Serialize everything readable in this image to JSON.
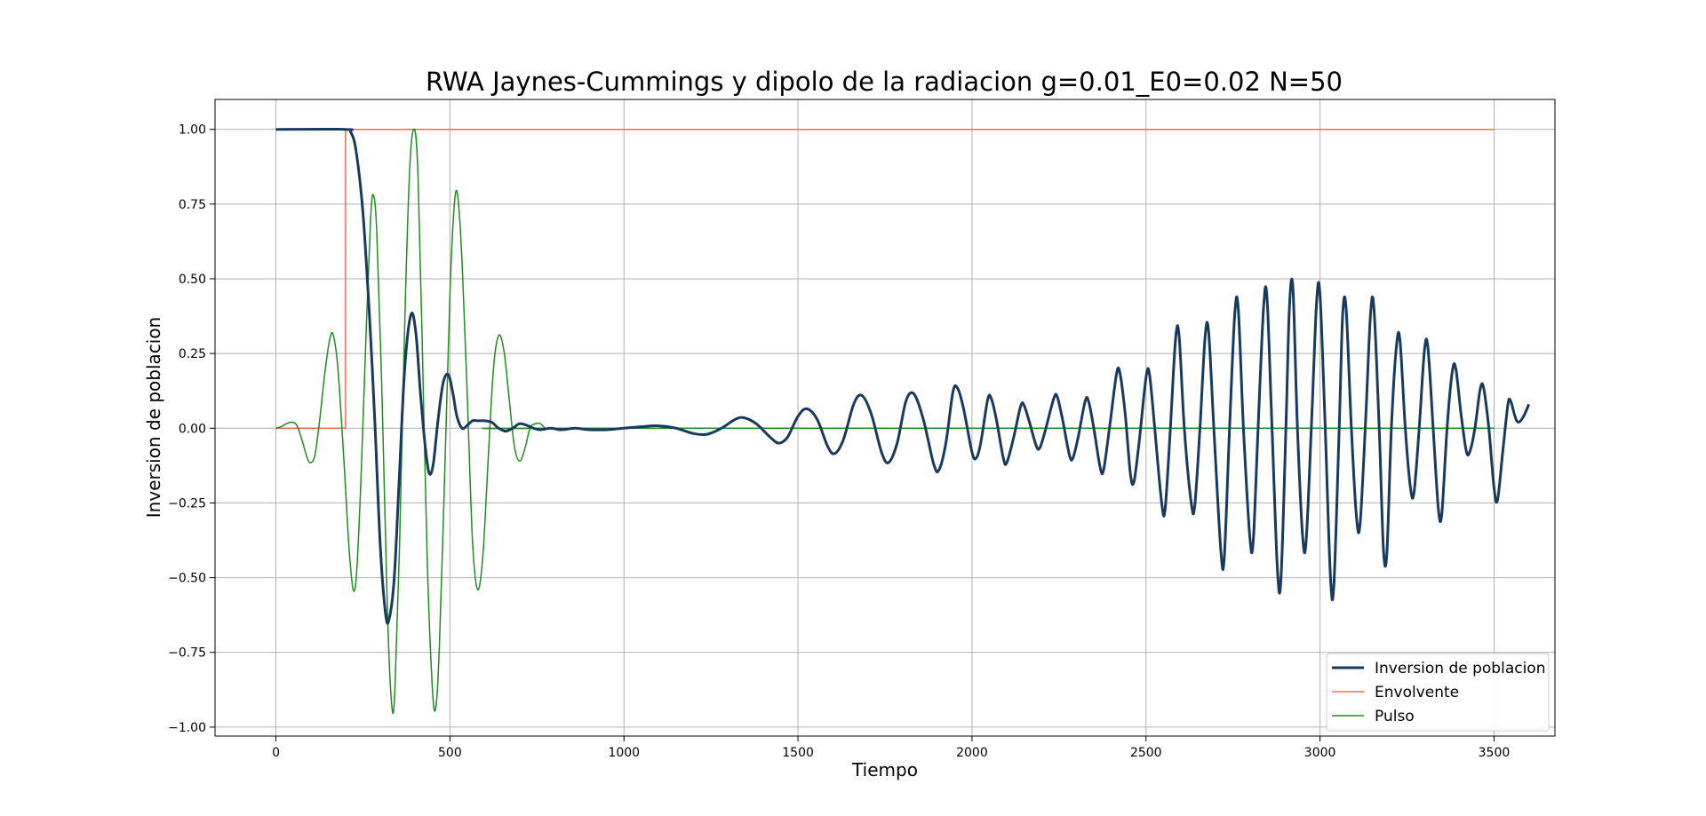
{
  "chart_data": {
    "type": "line",
    "title": "RWA Jaynes-Cummings y dipolo de la radiacion g=0.01_E0=0.02 N=50",
    "xlabel": "Tiempo",
    "ylabel": "Inversion de poblacion",
    "xlim": [
      -175,
      3675
    ],
    "ylim": [
      -1.03,
      1.1
    ],
    "xticks": [
      0,
      500,
      1000,
      1500,
      2000,
      2500,
      3000,
      3500
    ],
    "xtick_labels": [
      "0",
      "500",
      "1000",
      "1500",
      "2000",
      "2500",
      "3000",
      "3500"
    ],
    "yticks": [
      1.0,
      0.75,
      0.5,
      0.25,
      0.0,
      -0.25,
      -0.5,
      -0.75,
      -1.0
    ],
    "ytick_labels": [
      "1.00",
      "0.75",
      "0.50",
      "0.25",
      "0.00",
      "−0.25",
      "−0.50",
      "−0.75",
      "−1.00"
    ],
    "grid": true,
    "legend_position": "lower right",
    "series": [
      {
        "name": "Inversion de poblacion",
        "color": "#173a5e",
        "points": [
          [
            0,
            1
          ],
          [
            200,
            1
          ],
          [
            215,
            0.99
          ],
          [
            230,
            0.93
          ],
          [
            250,
            0.72
          ],
          [
            270,
            0.35
          ],
          [
            285,
            0.0
          ],
          [
            300,
            -0.4
          ],
          [
            315,
            -0.62
          ],
          [
            325,
            -0.64
          ],
          [
            340,
            -0.5
          ],
          [
            355,
            -0.15
          ],
          [
            370,
            0.2
          ],
          [
            388,
            0.38
          ],
          [
            402,
            0.32
          ],
          [
            415,
            0.12
          ],
          [
            428,
            -0.05
          ],
          [
            440,
            -0.15
          ],
          [
            452,
            -0.12
          ],
          [
            465,
            0.02
          ],
          [
            480,
            0.15
          ],
          [
            495,
            0.18
          ],
          [
            508,
            0.12
          ],
          [
            520,
            0.04
          ],
          [
            535,
            0.0
          ],
          [
            550,
            0.01
          ],
          [
            565,
            0.025
          ],
          [
            580,
            0.025
          ],
          [
            600,
            0.025
          ],
          [
            620,
            0.02
          ],
          [
            640,
            0.0
          ],
          [
            660,
            -0.01
          ],
          [
            680,
            0.0
          ],
          [
            700,
            0.015
          ],
          [
            720,
            0.01
          ],
          [
            740,
            0.0
          ],
          [
            760,
            -0.005
          ],
          [
            790,
            0.0
          ],
          [
            820,
            -0.005
          ],
          [
            860,
            0.0
          ],
          [
            900,
            -0.005
          ],
          [
            950,
            -0.005
          ],
          [
            1000,
            0.0
          ],
          [
            1050,
            0.005
          ],
          [
            1100,
            0.008
          ],
          [
            1150,
            0.0
          ],
          [
            1200,
            -0.018
          ],
          [
            1240,
            -0.02
          ],
          [
            1280,
            0.0
          ],
          [
            1320,
            0.03
          ],
          [
            1345,
            0.035
          ],
          [
            1380,
            0.015
          ],
          [
            1420,
            -0.03
          ],
          [
            1445,
            -0.05
          ],
          [
            1470,
            -0.03
          ],
          [
            1500,
            0.04
          ],
          [
            1525,
            0.065
          ],
          [
            1555,
            0.03
          ],
          [
            1585,
            -0.06
          ],
          [
            1605,
            -0.085
          ],
          [
            1630,
            -0.04
          ],
          [
            1660,
            0.08
          ],
          [
            1683,
            0.11
          ],
          [
            1710,
            0.05
          ],
          [
            1740,
            -0.08
          ],
          [
            1760,
            -0.115
          ],
          [
            1785,
            -0.05
          ],
          [
            1810,
            0.09
          ],
          [
            1833,
            0.115
          ],
          [
            1860,
            0.03
          ],
          [
            1890,
            -0.12
          ],
          [
            1905,
            -0.14
          ],
          [
            1925,
            -0.05
          ],
          [
            1945,
            0.12
          ],
          [
            1958,
            0.135
          ],
          [
            1975,
            0.07
          ],
          [
            2000,
            -0.08
          ],
          [
            2012,
            -0.1
          ],
          [
            2025,
            -0.05
          ],
          [
            2045,
            0.095
          ],
          [
            2055,
            0.1
          ],
          [
            2070,
            0.03
          ],
          [
            2090,
            -0.1
          ],
          [
            2100,
            -0.115
          ],
          [
            2120,
            -0.03
          ],
          [
            2140,
            0.075
          ],
          [
            2150,
            0.075
          ],
          [
            2165,
            0.02
          ],
          [
            2185,
            -0.06
          ],
          [
            2195,
            -0.065
          ],
          [
            2210,
            -0.01
          ],
          [
            2235,
            0.1
          ],
          [
            2245,
            0.105
          ],
          [
            2260,
            0.03
          ],
          [
            2280,
            -0.09
          ],
          [
            2290,
            -0.1
          ],
          [
            2305,
            -0.03
          ],
          [
            2325,
            0.09
          ],
          [
            2335,
            0.09
          ],
          [
            2350,
            0.0
          ],
          [
            2368,
            -0.13
          ],
          [
            2378,
            -0.14
          ],
          [
            2395,
            0.0
          ],
          [
            2415,
            0.18
          ],
          [
            2425,
            0.185
          ],
          [
            2440,
            0.05
          ],
          [
            2455,
            -0.15
          ],
          [
            2465,
            -0.18
          ],
          [
            2480,
            -0.05
          ],
          [
            2500,
            0.17
          ],
          [
            2510,
            0.18
          ],
          [
            2525,
            0.0
          ],
          [
            2545,
            -0.25
          ],
          [
            2555,
            -0.27
          ],
          [
            2570,
            0.0
          ],
          [
            2585,
            0.3
          ],
          [
            2595,
            0.31
          ],
          [
            2610,
            0.0
          ],
          [
            2630,
            -0.25
          ],
          [
            2640,
            -0.26
          ],
          [
            2655,
            0.0
          ],
          [
            2670,
            0.31
          ],
          [
            2680,
            0.32
          ],
          [
            2695,
            0.0
          ],
          [
            2715,
            -0.41
          ],
          [
            2725,
            -0.43
          ],
          [
            2740,
            0.0
          ],
          [
            2755,
            0.38
          ],
          [
            2765,
            0.4
          ],
          [
            2780,
            0.0
          ],
          [
            2798,
            -0.36
          ],
          [
            2808,
            -0.38
          ],
          [
            2822,
            0.0
          ],
          [
            2838,
            0.41
          ],
          [
            2848,
            0.43
          ],
          [
            2862,
            0.0
          ],
          [
            2878,
            -0.48
          ],
          [
            2888,
            -0.5
          ],
          [
            2902,
            0.0
          ],
          [
            2912,
            0.4
          ],
          [
            2922,
            0.47
          ],
          [
            2935,
            0.0
          ],
          [
            2950,
            -0.36
          ],
          [
            2960,
            -0.38
          ],
          [
            2975,
            0.0
          ],
          [
            2990,
            0.42
          ],
          [
            3000,
            0.445
          ],
          [
            3015,
            0.0
          ],
          [
            3030,
            -0.5
          ],
          [
            3040,
            -0.52
          ],
          [
            3055,
            0.0
          ],
          [
            3065,
            0.38
          ],
          [
            3075,
            0.4
          ],
          [
            3090,
            0.0
          ],
          [
            3105,
            -0.3
          ],
          [
            3115,
            -0.32
          ],
          [
            3130,
            0.0
          ],
          [
            3145,
            0.38
          ],
          [
            3155,
            0.4
          ],
          [
            3170,
            0.0
          ],
          [
            3182,
            -0.4
          ],
          [
            3192,
            -0.42
          ],
          [
            3205,
            0.0
          ],
          [
            3220,
            0.28
          ],
          [
            3230,
            0.29
          ],
          [
            3245,
            0.0
          ],
          [
            3260,
            -0.2
          ],
          [
            3270,
            -0.215
          ],
          [
            3285,
            0.0
          ],
          [
            3300,
            0.26
          ],
          [
            3310,
            0.27
          ],
          [
            3325,
            0.0
          ],
          [
            3340,
            -0.27
          ],
          [
            3350,
            -0.285
          ],
          [
            3365,
            0.0
          ],
          [
            3380,
            0.19
          ],
          [
            3390,
            0.2
          ],
          [
            3405,
            0.05
          ],
          [
            3420,
            -0.075
          ],
          [
            3430,
            -0.08
          ],
          [
            3445,
            0.0
          ],
          [
            3460,
            0.13
          ],
          [
            3470,
            0.135
          ],
          [
            3485,
            0.0
          ],
          [
            3500,
            -0.2
          ],
          [
            3510,
            -0.24
          ],
          [
            3525,
            -0.08
          ],
          [
            3540,
            0.08
          ],
          [
            3548,
            0.09
          ],
          [
            3560,
            0.04
          ],
          [
            3570,
            0.02
          ],
          [
            3585,
            0.04
          ],
          [
            3600,
            0.08
          ]
        ]
      },
      {
        "name": "Envolvente",
        "color": "#ef6b55",
        "points": [
          [
            0,
            0
          ],
          [
            200,
            0
          ],
          [
            200,
            1
          ],
          [
            3500,
            1
          ]
        ]
      },
      {
        "name": "Pulso",
        "color": "#228b22",
        "points": [
          [
            0,
            0
          ],
          [
            15,
            0.005
          ],
          [
            30,
            0.015
          ],
          [
            45,
            0.02
          ],
          [
            60,
            0.01
          ],
          [
            75,
            -0.04
          ],
          [
            90,
            -0.1
          ],
          [
            100,
            -0.115
          ],
          [
            112,
            -0.09
          ],
          [
            125,
            0.02
          ],
          [
            140,
            0.18
          ],
          [
            155,
            0.3
          ],
          [
            165,
            0.31
          ],
          [
            178,
            0.2
          ],
          [
            195,
            -0.1
          ],
          [
            210,
            -0.4
          ],
          [
            222,
            -0.54
          ],
          [
            232,
            -0.48
          ],
          [
            245,
            -0.15
          ],
          [
            260,
            0.35
          ],
          [
            272,
            0.7
          ],
          [
            280,
            0.78
          ],
          [
            290,
            0.65
          ],
          [
            305,
            0.1
          ],
          [
            320,
            -0.6
          ],
          [
            333,
            -0.93
          ],
          [
            342,
            -0.87
          ],
          [
            355,
            -0.4
          ],
          [
            370,
            0.35
          ],
          [
            385,
            0.88
          ],
          [
            398,
            1.0
          ],
          [
            408,
            0.85
          ],
          [
            420,
            0.3
          ],
          [
            435,
            -0.45
          ],
          [
            450,
            -0.88
          ],
          [
            460,
            -0.93
          ],
          [
            470,
            -0.72
          ],
          [
            485,
            -0.15
          ],
          [
            500,
            0.45
          ],
          [
            512,
            0.74
          ],
          [
            522,
            0.78
          ],
          [
            535,
            0.55
          ],
          [
            550,
            0.1
          ],
          [
            565,
            -0.38
          ],
          [
            580,
            -0.54
          ],
          [
            595,
            -0.42
          ],
          [
            610,
            -0.1
          ],
          [
            625,
            0.2
          ],
          [
            640,
            0.31
          ],
          [
            655,
            0.26
          ],
          [
            670,
            0.1
          ],
          [
            685,
            -0.06
          ],
          [
            700,
            -0.11
          ],
          [
            715,
            -0.07
          ],
          [
            730,
            0.0
          ],
          [
            745,
            0.015
          ],
          [
            760,
            0.015
          ],
          [
            775,
            0.0
          ],
          [
            800,
            0.0
          ],
          [
            3500,
            0.0
          ]
        ]
      }
    ]
  }
}
